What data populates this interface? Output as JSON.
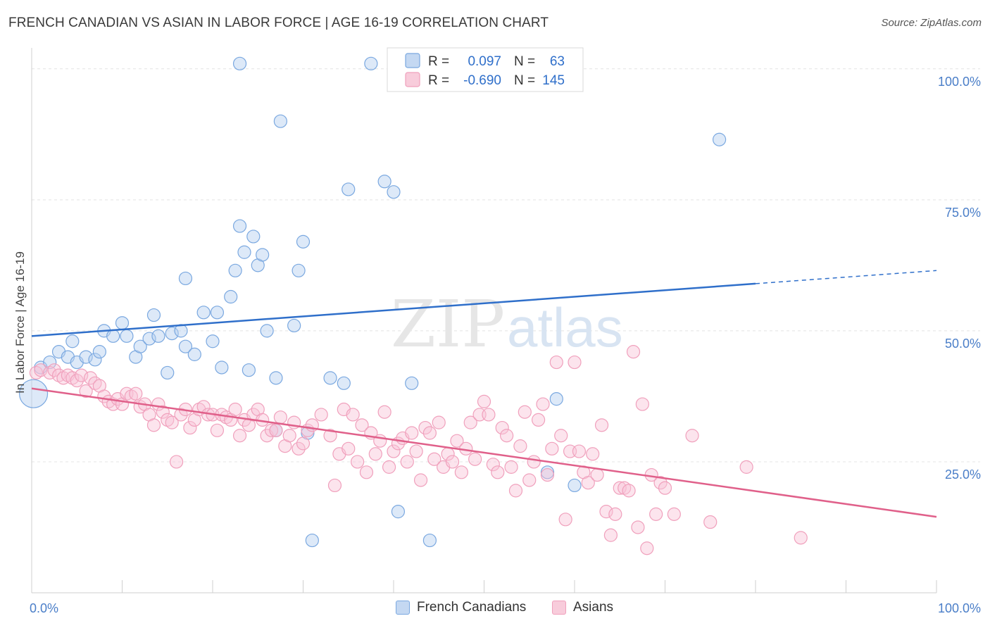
{
  "title": "FRENCH CANADIAN VS ASIAN IN LABOR FORCE | AGE 16-19 CORRELATION CHART",
  "source": "Source: ZipAtlas.com",
  "watermark": {
    "zip": "ZIP",
    "atlas": "atlas"
  },
  "legend_box": [
    {
      "r_label": "R =",
      "r_value": "0.097",
      "n_label": "N =",
      "n_value": "63"
    },
    {
      "r_label": "R =",
      "r_value": "-0.690",
      "n_label": "N =",
      "n_value": "145"
    }
  ],
  "chart_data": {
    "type": "scatter",
    "title": "FRENCH CANADIAN VS ASIAN IN LABOR FORCE | AGE 16-19 CORRELATION CHART",
    "xlabel": "",
    "ylabel": "In Labor Force | Age 16-19",
    "xlim": [
      0,
      100
    ],
    "ylim": [
      0,
      104
    ],
    "x_tick_labels": [
      "0.0%",
      "100.0%"
    ],
    "y_ticks": [
      25,
      50,
      75,
      100
    ],
    "y_tick_labels": [
      "25.0%",
      "50.0%",
      "75.0%",
      "100.0%"
    ],
    "grid": true,
    "legend_position": "top-center",
    "series": [
      {
        "name": "French Canadians",
        "color": "#7aa8e0",
        "line_color": "#2f6fca",
        "trend": {
          "x": [
            0,
            80
          ],
          "y": [
            49,
            59
          ],
          "dashed_to": [
            100,
            61.5
          ]
        },
        "points": [
          [
            0.2,
            38,
            "big"
          ],
          [
            1,
            43
          ],
          [
            2,
            44
          ],
          [
            3,
            46
          ],
          [
            4,
            45
          ],
          [
            4.5,
            48
          ],
          [
            5,
            44
          ],
          [
            6,
            45
          ],
          [
            7,
            44.5
          ],
          [
            7.5,
            46
          ],
          [
            8,
            50
          ],
          [
            9,
            49
          ],
          [
            10,
            51.5
          ],
          [
            10.5,
            49
          ],
          [
            11.5,
            45
          ],
          [
            12,
            47
          ],
          [
            13,
            48.5
          ],
          [
            13.5,
            53
          ],
          [
            14,
            49
          ],
          [
            15,
            42
          ],
          [
            15.5,
            49.5
          ],
          [
            16.5,
            50
          ],
          [
            17,
            47
          ],
          [
            17,
            60
          ],
          [
            18,
            45.5
          ],
          [
            19,
            53.5
          ],
          [
            20,
            48
          ],
          [
            20.5,
            53.5
          ],
          [
            21,
            43
          ],
          [
            22,
            56.5
          ],
          [
            22.5,
            61.5
          ],
          [
            23,
            70
          ],
          [
            23.5,
            65
          ],
          [
            24,
            42.5
          ],
          [
            24.5,
            68
          ],
          [
            25,
            62.5
          ],
          [
            25.5,
            64.5
          ],
          [
            26,
            50
          ],
          [
            27,
            41
          ],
          [
            27,
            31
          ],
          [
            27.5,
            90
          ],
          [
            29,
            51
          ],
          [
            29.5,
            61.5
          ],
          [
            30,
            67
          ],
          [
            30.5,
            30.5
          ],
          [
            31,
            10
          ],
          [
            33,
            41
          ],
          [
            34.5,
            40
          ],
          [
            35,
            77
          ],
          [
            37.5,
            101
          ],
          [
            39,
            78.5
          ],
          [
            40,
            76.5
          ],
          [
            40.5,
            15.5
          ],
          [
            42,
            40
          ],
          [
            43,
            101
          ],
          [
            44,
            10
          ],
          [
            57,
            23
          ],
          [
            58,
            37
          ],
          [
            60,
            20.5
          ],
          [
            76,
            86.5
          ],
          [
            23,
            101
          ]
        ]
      },
      {
        "name": "Asians",
        "color": "#f0a0bc",
        "line_color": "#e0608a",
        "trend": {
          "x": [
            0,
            100
          ],
          "y": [
            39,
            14.5
          ]
        },
        "points": [
          [
            0.5,
            42
          ],
          [
            1,
            42.5
          ],
          [
            2,
            42
          ],
          [
            2.5,
            42.5
          ],
          [
            3,
            41.5
          ],
          [
            3.5,
            41
          ],
          [
            4,
            41.5
          ],
          [
            4.5,
            41
          ],
          [
            5,
            40.5
          ],
          [
            5.5,
            41.5
          ],
          [
            6,
            38.5
          ],
          [
            6.5,
            41
          ],
          [
            7,
            40
          ],
          [
            7.5,
            39.5
          ],
          [
            8,
            37.5
          ],
          [
            8.5,
            36.5
          ],
          [
            9,
            36
          ],
          [
            9.5,
            37
          ],
          [
            10,
            36
          ],
          [
            10.5,
            38
          ],
          [
            11,
            37.5
          ],
          [
            11.5,
            38
          ],
          [
            12,
            35.5
          ],
          [
            12.5,
            36
          ],
          [
            13,
            34
          ],
          [
            13.5,
            32
          ],
          [
            14,
            36
          ],
          [
            14.5,
            34.5
          ],
          [
            15,
            33
          ],
          [
            15.5,
            32.5
          ],
          [
            16,
            25
          ],
          [
            16.5,
            34
          ],
          [
            17,
            35
          ],
          [
            17.5,
            31.5
          ],
          [
            18,
            33
          ],
          [
            18.5,
            35
          ],
          [
            19,
            35.5
          ],
          [
            19.5,
            34
          ],
          [
            20,
            34
          ],
          [
            20.5,
            31
          ],
          [
            21,
            34
          ],
          [
            21.5,
            33.5
          ],
          [
            22,
            33
          ],
          [
            22.5,
            35
          ],
          [
            23,
            30
          ],
          [
            23.5,
            33
          ],
          [
            24,
            32
          ],
          [
            24.5,
            34
          ],
          [
            25,
            35
          ],
          [
            25.5,
            33
          ],
          [
            26,
            30
          ],
          [
            26.5,
            31
          ],
          [
            27,
            31
          ],
          [
            27.5,
            33.5
          ],
          [
            28,
            28
          ],
          [
            28.5,
            30
          ],
          [
            29,
            32.5
          ],
          [
            29.5,
            27.5
          ],
          [
            30,
            28.5
          ],
          [
            30.5,
            31
          ],
          [
            31,
            32
          ],
          [
            32,
            34
          ],
          [
            33,
            30
          ],
          [
            33.5,
            20.5
          ],
          [
            34,
            26.5
          ],
          [
            34.5,
            35
          ],
          [
            35,
            27.5
          ],
          [
            35.5,
            34
          ],
          [
            36,
            25
          ],
          [
            36.5,
            32
          ],
          [
            37,
            23
          ],
          [
            37.5,
            30.5
          ],
          [
            38,
            26.5
          ],
          [
            38.5,
            29
          ],
          [
            39,
            34.5
          ],
          [
            39.5,
            24
          ],
          [
            40,
            27
          ],
          [
            40.5,
            28.5
          ],
          [
            41,
            29.5
          ],
          [
            41.5,
            25
          ],
          [
            42,
            30.5
          ],
          [
            42.5,
            27
          ],
          [
            43,
            21.5
          ],
          [
            43.5,
            31.5
          ],
          [
            44,
            30.5
          ],
          [
            44.5,
            25.5
          ],
          [
            45,
            32.5
          ],
          [
            45.5,
            24
          ],
          [
            46,
            26.5
          ],
          [
            46.5,
            25
          ],
          [
            47,
            29
          ],
          [
            47.5,
            23
          ],
          [
            48,
            27.5
          ],
          [
            48.5,
            32.5
          ],
          [
            49,
            25.5
          ],
          [
            49.5,
            34
          ],
          [
            50,
            36.5
          ],
          [
            50.5,
            34
          ],
          [
            51,
            24.5
          ],
          [
            51.5,
            23
          ],
          [
            52,
            31.5
          ],
          [
            52.5,
            30
          ],
          [
            53,
            24
          ],
          [
            53.5,
            19.5
          ],
          [
            54,
            28
          ],
          [
            54.5,
            34.5
          ],
          [
            55,
            21.5
          ],
          [
            55.5,
            25
          ],
          [
            56,
            33
          ],
          [
            56.5,
            36
          ],
          [
            57,
            22.5
          ],
          [
            57.5,
            27.5
          ],
          [
            58,
            44
          ],
          [
            58.5,
            30
          ],
          [
            59,
            14
          ],
          [
            59.5,
            27
          ],
          [
            60,
            44
          ],
          [
            60.5,
            27
          ],
          [
            61,
            23
          ],
          [
            61.5,
            21
          ],
          [
            62,
            26.5
          ],
          [
            62.5,
            22.5
          ],
          [
            63,
            32
          ],
          [
            63.5,
            15.5
          ],
          [
            64,
            11
          ],
          [
            64.5,
            15
          ],
          [
            65,
            20
          ],
          [
            65.5,
            20
          ],
          [
            66,
            19.5
          ],
          [
            66.5,
            46
          ],
          [
            67,
            12.5
          ],
          [
            67.5,
            36
          ],
          [
            68,
            8.5
          ],
          [
            68.5,
            22.5
          ],
          [
            69,
            15
          ],
          [
            69.5,
            21
          ],
          [
            70,
            20
          ],
          [
            71,
            15
          ],
          [
            73,
            30
          ],
          [
            75,
            13.5
          ],
          [
            79,
            24
          ],
          [
            85,
            10.5
          ]
        ]
      }
    ]
  },
  "legend_bottom": [
    {
      "label": "French Canadians",
      "color": "#7aa8e0"
    },
    {
      "label": "Asians",
      "color": "#f0a0bc"
    }
  ]
}
